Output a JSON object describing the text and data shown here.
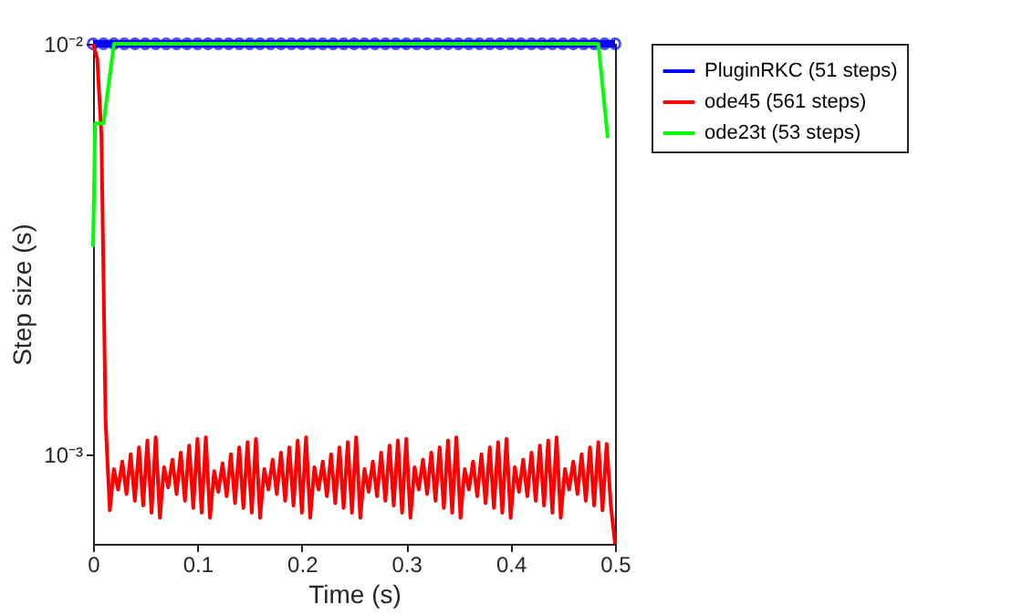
{
  "chart_data": {
    "type": "line",
    "xlabel": "Time (s)",
    "ylabel": "Step size (s)",
    "log": "y",
    "legend": "right",
    "xlim": [
      0,
      0.5
    ],
    "xticks": [
      0,
      0.1,
      0.2,
      0.3,
      0.4,
      0.5
    ],
    "ylim": [
      0.000605,
      0.01
    ],
    "yticks": [
      {
        "value": 0.001,
        "label": "10⁻³"
      },
      {
        "value": 0.01,
        "label": "10⁻²"
      }
    ],
    "series": [
      {
        "name": "PluginRKC (51 steps)",
        "color": "#0000ff",
        "marker": "circle",
        "x": [
          0,
          0.01,
          0.02,
          0.03,
          0.04,
          0.05,
          0.06,
          0.07,
          0.08,
          0.09,
          0.1,
          0.11,
          0.12,
          0.13,
          0.14,
          0.15,
          0.16,
          0.17,
          0.18,
          0.19,
          0.2,
          0.21,
          0.22,
          0.23,
          0.24,
          0.25,
          0.26,
          0.27,
          0.28,
          0.29,
          0.3,
          0.31,
          0.32,
          0.33,
          0.34,
          0.35,
          0.36,
          0.37,
          0.38,
          0.39,
          0.4,
          0.41,
          0.42,
          0.43,
          0.44,
          0.45,
          0.46,
          0.47,
          0.48,
          0.49,
          0.5
        ],
        "values": [
          0.01,
          0.01,
          0.01,
          0.01,
          0.01,
          0.01,
          0.01,
          0.01,
          0.01,
          0.01,
          0.01,
          0.01,
          0.01,
          0.01,
          0.01,
          0.01,
          0.01,
          0.01,
          0.01,
          0.01,
          0.01,
          0.01,
          0.01,
          0.01,
          0.01,
          0.01,
          0.01,
          0.01,
          0.01,
          0.01,
          0.01,
          0.01,
          0.01,
          0.01,
          0.01,
          0.01,
          0.01,
          0.01,
          0.01,
          0.01,
          0.01,
          0.01,
          0.01,
          0.01,
          0.01,
          0.01,
          0.01,
          0.01,
          0.01,
          0.01,
          0.01
        ]
      },
      {
        "name": "ode45 (561 steps)",
        "color": "#ff0000",
        "marker": "none",
        "x": [
          0,
          0.004,
          0.008,
          0.012,
          0.016,
          0.02,
          0.024,
          0.028,
          0.032,
          0.036,
          0.04,
          0.044,
          0.048,
          0.052,
          0.056,
          0.06,
          0.064,
          0.068,
          0.072,
          0.076,
          0.08,
          0.084,
          0.088,
          0.092,
          0.096,
          0.1,
          0.104,
          0.108,
          0.112,
          0.116,
          0.12,
          0.124,
          0.128,
          0.132,
          0.136,
          0.14,
          0.144,
          0.148,
          0.152,
          0.156,
          0.16,
          0.164,
          0.168,
          0.172,
          0.176,
          0.18,
          0.184,
          0.188,
          0.192,
          0.196,
          0.2,
          0.204,
          0.208,
          0.212,
          0.216,
          0.22,
          0.224,
          0.228,
          0.232,
          0.236,
          0.24,
          0.244,
          0.248,
          0.252,
          0.256,
          0.26,
          0.264,
          0.268,
          0.272,
          0.276,
          0.28,
          0.284,
          0.288,
          0.292,
          0.296,
          0.3,
          0.304,
          0.308,
          0.312,
          0.316,
          0.32,
          0.324,
          0.328,
          0.332,
          0.336,
          0.34,
          0.344,
          0.348,
          0.352,
          0.356,
          0.36,
          0.364,
          0.368,
          0.372,
          0.376,
          0.38,
          0.384,
          0.388,
          0.392,
          0.396,
          0.4,
          0.404,
          0.408,
          0.412,
          0.416,
          0.42,
          0.424,
          0.428,
          0.432,
          0.436,
          0.44,
          0.444,
          0.448,
          0.452,
          0.456,
          0.46,
          0.464,
          0.468,
          0.472,
          0.476,
          0.48,
          0.484,
          0.488,
          0.492,
          0.496,
          0.5
        ],
        "values": [
          0.01,
          0.0092,
          0.006,
          0.0012,
          0.00073,
          0.00092,
          0.00082,
          0.00096,
          0.0008,
          0.001,
          0.00077,
          0.00104,
          0.00075,
          0.00108,
          0.00072,
          0.0011,
          0.0007,
          0.00093,
          0.00083,
          0.00097,
          0.0008,
          0.00101,
          0.00077,
          0.00105,
          0.00074,
          0.00109,
          0.00072,
          0.0011,
          0.0007,
          0.00091,
          0.00081,
          0.00095,
          0.00079,
          0.001,
          0.00076,
          0.00104,
          0.00074,
          0.00107,
          0.00072,
          0.00109,
          0.0007,
          0.00092,
          0.00082,
          0.00097,
          0.0008,
          0.00101,
          0.00077,
          0.00104,
          0.00075,
          0.00108,
          0.00072,
          0.0011,
          0.0007,
          0.00093,
          0.00082,
          0.00096,
          0.00079,
          0.001,
          0.00076,
          0.00104,
          0.00074,
          0.00107,
          0.00072,
          0.0011,
          0.0007,
          0.00092,
          0.00081,
          0.00096,
          0.00079,
          0.00101,
          0.00077,
          0.00105,
          0.00075,
          0.00108,
          0.00072,
          0.00109,
          0.0007,
          0.00093,
          0.00082,
          0.00097,
          0.0008,
          0.00101,
          0.00077,
          0.00104,
          0.00074,
          0.00108,
          0.00072,
          0.0011,
          0.0007,
          0.00092,
          0.00082,
          0.00096,
          0.00079,
          0.001,
          0.00076,
          0.00104,
          0.00074,
          0.00107,
          0.00072,
          0.00109,
          0.0007,
          0.00093,
          0.00081,
          0.00097,
          0.00079,
          0.00101,
          0.00077,
          0.00105,
          0.00075,
          0.00108,
          0.00072,
          0.0011,
          0.0007,
          0.00092,
          0.00082,
          0.00096,
          0.0008,
          0.001,
          0.00077,
          0.00104,
          0.00075,
          0.00107,
          0.00073,
          0.00106,
          0.00075,
          0.000605
        ]
      },
      {
        "name": "ode23t (53 steps)",
        "color": "#00ff00",
        "marker": "none",
        "x": [
          0,
          0.002,
          0.01,
          0.02,
          0.484,
          0.493
        ],
        "values": [
          0.0032,
          0.0064,
          0.0064,
          0.01,
          0.01,
          0.0059
        ]
      }
    ]
  }
}
